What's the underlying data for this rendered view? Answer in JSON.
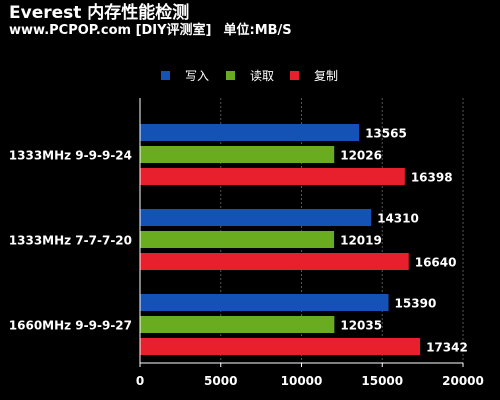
{
  "header": {
    "title": "Everest 内存性能检测",
    "source": "www.PCPOP.com [DIY评测室]",
    "unit": "单位:MB/S"
  },
  "chart_data": {
    "type": "bar",
    "orientation": "horizontal",
    "title": "Everest 内存性能检测",
    "xlabel": "",
    "ylabel": "",
    "categories": [
      "1333MHz 9-9-9-24",
      "1333MHz 7-7-7-20",
      "1660MHz 9-9-9-27"
    ],
    "series": [
      {
        "name": "写入",
        "color": "#1552b5",
        "values": [
          13565,
          14310,
          15390
        ]
      },
      {
        "name": "读取",
        "color": "#6aac1f",
        "values": [
          12026,
          12019,
          12035
        ]
      },
      {
        "name": "复制",
        "color": "#e8202e",
        "values": [
          16398,
          16640,
          17342
        ]
      }
    ],
    "xlim": [
      0,
      20000
    ],
    "xticks": [
      0,
      5000,
      10000,
      15000,
      20000
    ],
    "grid": true,
    "legend_position": "top"
  }
}
